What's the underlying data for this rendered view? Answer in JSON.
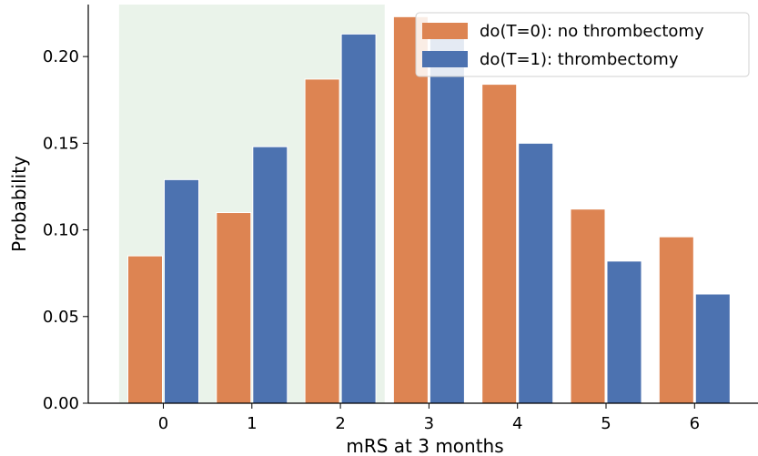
{
  "chart_data": {
    "type": "bar",
    "categories": [
      "0",
      "1",
      "2",
      "3",
      "4",
      "5",
      "6"
    ],
    "series": [
      {
        "name": "do(T=0): no thrombectomy",
        "color": "#DD8452",
        "values": [
          0.085,
          0.11,
          0.187,
          0.223,
          0.184,
          0.112,
          0.096
        ]
      },
      {
        "name": "do(T=1): thrombectomy",
        "color": "#4C72B0",
        "values": [
          0.129,
          0.148,
          0.213,
          0.213,
          0.15,
          0.082,
          0.063
        ]
      }
    ],
    "xlabel": "mRS at 3 months",
    "ylabel": "Probability",
    "ylim": [
      0,
      0.23
    ],
    "yticks": [
      "0.00",
      "0.05",
      "0.10",
      "0.15",
      "0.20"
    ],
    "highlight_region": {
      "from_category": "0",
      "to_category": "2",
      "color": "#EAF3EA"
    },
    "grid": false,
    "legend_position": "top-right"
  }
}
